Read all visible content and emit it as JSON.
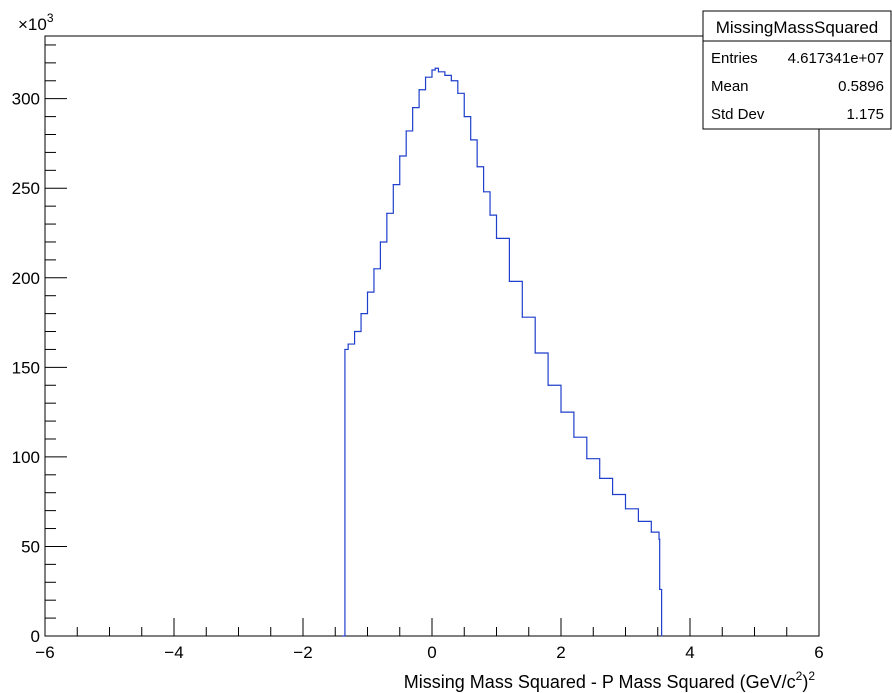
{
  "chart_data": {
    "type": "line",
    "xlabel_main": "Missing Mass Squared - P Mass Squared (GeV/c",
    "xlabel_sup1": "2",
    "xlabel_close": ")",
    "xlabel_sup2": "2",
    "ylabel": "",
    "y_multiplier_base": "×10",
    "y_multiplier_exp": "3",
    "xlim": [
      -6,
      6
    ],
    "ylim": [
      0,
      335
    ],
    "x_ticks": [
      -6,
      -4,
      -2,
      0,
      2,
      4,
      6
    ],
    "x_tick_labels": [
      "−6",
      "−4",
      "−2",
      "0",
      "2",
      "4",
      "6"
    ],
    "y_ticks": [
      0,
      50,
      100,
      150,
      200,
      250,
      300
    ],
    "y_tick_labels": [
      "0",
      "50",
      "100",
      "150",
      "200",
      "250",
      "300"
    ],
    "grid": false,
    "series": [
      {
        "color": "#1f3fcc",
        "x": [
          -1.38,
          -1.35,
          -1.3,
          -1.2,
          -1.1,
          -1.0,
          -0.9,
          -0.8,
          -0.7,
          -0.6,
          -0.5,
          -0.4,
          -0.3,
          -0.2,
          -0.1,
          0.0,
          0.05,
          0.1,
          0.2,
          0.3,
          0.4,
          0.5,
          0.6,
          0.7,
          0.8,
          0.9,
          1.0,
          1.2,
          1.4,
          1.6,
          1.8,
          2.0,
          2.2,
          2.4,
          2.6,
          2.8,
          3.0,
          3.2,
          3.4,
          3.52,
          3.53,
          3.56
        ],
        "y": [
          0,
          160,
          163,
          170,
          180,
          192,
          205,
          220,
          236,
          252,
          268,
          282,
          295,
          305,
          312,
          316,
          317,
          315,
          313,
          310,
          303,
          290,
          277,
          262,
          248,
          235,
          222,
          198,
          178,
          158,
          140,
          125,
          111,
          99,
          88,
          79,
          71,
          64,
          58,
          54,
          26,
          0
        ]
      }
    ],
    "stats_box": {
      "title": "MissingMassSquared",
      "rows": [
        {
          "label": "Entries",
          "value": "4.617341e+07"
        },
        {
          "label": "Mean",
          "value": "0.5896"
        },
        {
          "label": "Std Dev",
          "value": "1.175"
        }
      ]
    }
  }
}
